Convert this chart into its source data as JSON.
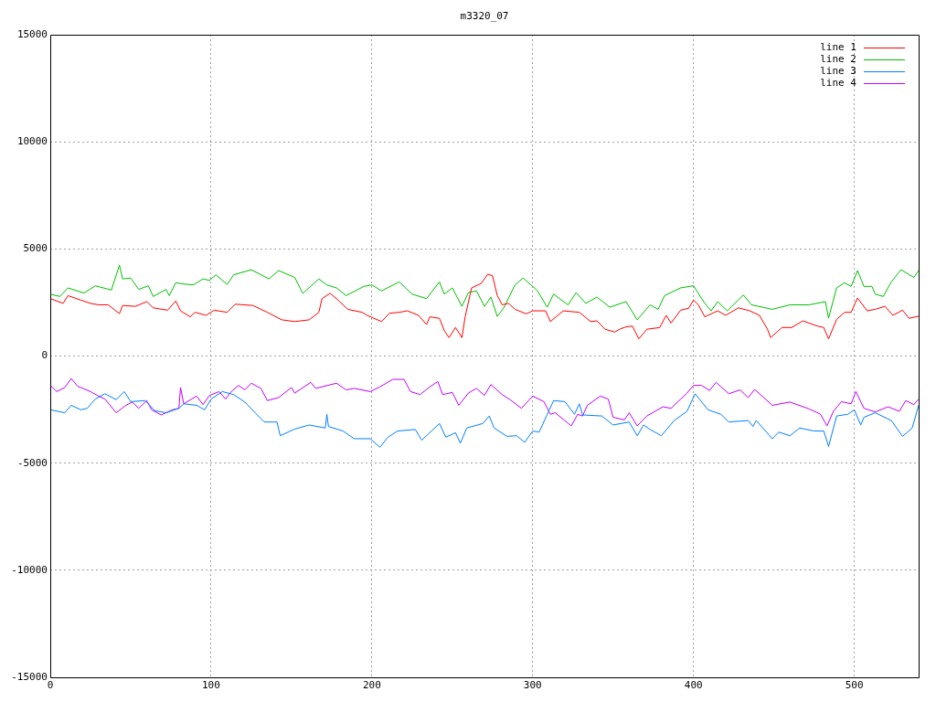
{
  "chart_data": {
    "type": "line",
    "title": "m3320_07",
    "xlim": [
      0,
      540
    ],
    "xticks": [
      0,
      100,
      200,
      300,
      400,
      500
    ],
    "ylim": [
      -15000,
      15000
    ],
    "yticks": [
      -15000,
      -10000,
      -5000,
      0,
      5000,
      10000,
      15000
    ],
    "grid": true,
    "legend": "top right",
    "marker": "none",
    "line_style": "solid",
    "series": [
      {
        "name": "line 1",
        "color": "#ff0000",
        "x": [
          0,
          8,
          11,
          19,
          25,
          30,
          36,
          43,
          45,
          53,
          60,
          64,
          73,
          78,
          81,
          87,
          90,
          97,
          102,
          110,
          115,
          126,
          135,
          144,
          152,
          161,
          167,
          169,
          174,
          179,
          185,
          194,
          197,
          206,
          211,
          217,
          222,
          229,
          234,
          236,
          242,
          245,
          248,
          252,
          256,
          258,
          262,
          268,
          272,
          275,
          278,
          281,
          285,
          289,
          296,
          300,
          308,
          311,
          319,
          329,
          336,
          340,
          345,
          351,
          354,
          358,
          362,
          366,
          371,
          379,
          383,
          386,
          392,
          397,
          400,
          403,
          407,
          415,
          420,
          428,
          435,
          441,
          446,
          448,
          455,
          461,
          468,
          477,
          481,
          484,
          489,
          494,
          498,
          502,
          508,
          513,
          519,
          524,
          530,
          534,
          540
        ],
        "values": [
          2680,
          2460,
          2820,
          2610,
          2460,
          2390,
          2390,
          1980,
          2360,
          2320,
          2540,
          2250,
          2140,
          2570,
          2110,
          1830,
          2040,
          1900,
          2140,
          2040,
          2420,
          2360,
          2040,
          1690,
          1610,
          1690,
          2040,
          2680,
          2930,
          2610,
          2180,
          2040,
          1900,
          1610,
          2000,
          2040,
          2110,
          1900,
          1470,
          1830,
          1760,
          1190,
          860,
          1330,
          860,
          1830,
          3180,
          3390,
          3820,
          3750,
          2820,
          2390,
          2460,
          2180,
          1970,
          2110,
          2110,
          1610,
          2110,
          2040,
          1610,
          1640,
          1250,
          1120,
          1250,
          1360,
          1400,
          800,
          1250,
          1330,
          1900,
          1540,
          2140,
          2230,
          2610,
          2390,
          1830,
          2110,
          1900,
          2250,
          2110,
          1900,
          1250,
          860,
          1330,
          1330,
          1640,
          1400,
          1330,
          800,
          1710,
          2040,
          2040,
          2710,
          2110,
          2180,
          2320,
          1900,
          2140,
          1760,
          1860
        ]
      },
      {
        "name": "line 2",
        "color": "#00c000",
        "x": [
          0,
          6,
          11,
          21,
          28,
          38,
          43,
          45,
          50,
          55,
          61,
          64,
          72,
          74,
          78,
          83,
          89,
          95,
          99,
          103,
          110,
          114,
          125,
          136,
          142,
          152,
          157,
          167,
          172,
          178,
          184,
          195,
          200,
          206,
          217,
          225,
          234,
          242,
          245,
          250,
          256,
          260,
          265,
          270,
          274,
          278,
          282,
          289,
          294,
          300,
          303,
          309,
          313,
          322,
          327,
          333,
          340,
          348,
          358,
          365,
          373,
          378,
          382,
          392,
          400,
          407,
          411,
          415,
          421,
          431,
          436,
          449,
          460,
          472,
          482,
          484,
          489,
          494,
          498,
          502,
          506,
          511,
          513,
          518,
          523,
          529,
          537,
          540
        ],
        "values": [
          2890,
          2780,
          3180,
          2940,
          3280,
          3080,
          4240,
          3600,
          3640,
          3110,
          3280,
          2780,
          3110,
          2820,
          3420,
          3360,
          3320,
          3600,
          3530,
          3790,
          3340,
          3790,
          4030,
          3600,
          3990,
          3670,
          2920,
          3600,
          3320,
          3180,
          2820,
          3250,
          3320,
          3040,
          3460,
          2890,
          2680,
          3460,
          2890,
          3180,
          2320,
          2960,
          3040,
          2320,
          2750,
          1850,
          2250,
          3320,
          3640,
          3250,
          3040,
          2280,
          2890,
          2390,
          2960,
          2460,
          2750,
          2280,
          2540,
          1690,
          2390,
          2180,
          2820,
          3180,
          3280,
          2460,
          2110,
          2540,
          2110,
          2850,
          2390,
          2180,
          2390,
          2390,
          2540,
          1770,
          3180,
          3420,
          3250,
          3990,
          3250,
          3250,
          2890,
          2780,
          3460,
          4030,
          3670,
          3990
        ]
      },
      {
        "name": "line 3",
        "color": "#0080ff",
        "x": [
          0,
          9,
          13,
          19,
          23,
          28,
          34,
          41,
          46,
          50,
          59,
          65,
          72,
          80,
          83,
          91,
          96,
          100,
          107,
          114,
          121,
          133,
          141,
          143,
          152,
          161,
          171,
          172,
          173,
          182,
          189,
          199,
          205,
          210,
          216,
          227,
          231,
          242,
          246,
          252,
          255,
          259,
          269,
          273,
          276,
          284,
          290,
          295,
          300,
          304,
          313,
          320,
          326,
          329,
          331,
          343,
          350,
          360,
          365,
          369,
          373,
          380,
          388,
          396,
          401,
          409,
          417,
          422,
          434,
          437,
          439,
          449,
          453,
          460,
          466,
          475,
          481,
          484,
          489,
          496,
          500,
          504,
          506,
          513,
          523,
          530,
          536,
          540
        ],
        "values": [
          -2510,
          -2650,
          -2300,
          -2510,
          -2440,
          -2010,
          -1760,
          -2040,
          -1660,
          -2130,
          -2080,
          -2550,
          -2650,
          -2440,
          -2230,
          -2300,
          -2510,
          -2010,
          -1660,
          -1800,
          -2150,
          -3080,
          -3080,
          -3720,
          -3410,
          -3220,
          -3360,
          -2720,
          -3290,
          -3500,
          -3860,
          -3860,
          -4260,
          -3790,
          -3500,
          -3430,
          -3930,
          -3150,
          -3790,
          -3580,
          -4070,
          -3360,
          -3150,
          -2800,
          -3360,
          -3750,
          -3720,
          -4030,
          -3500,
          -3550,
          -2080,
          -2130,
          -2720,
          -2230,
          -2750,
          -2800,
          -3220,
          -3080,
          -3720,
          -3220,
          -3430,
          -3720,
          -3010,
          -2580,
          -1760,
          -2510,
          -2720,
          -3080,
          -3010,
          -3290,
          -3010,
          -3860,
          -3550,
          -3720,
          -3360,
          -3500,
          -3500,
          -4220,
          -2800,
          -2720,
          -2510,
          -3220,
          -2860,
          -2650,
          -3010,
          -3750,
          -3360,
          -2300
        ]
      },
      {
        "name": "line 4",
        "color": "#c000ff",
        "x": [
          0,
          4,
          9,
          13,
          17,
          25,
          30,
          34,
          41,
          47,
          51,
          55,
          60,
          63,
          69,
          76,
          80,
          81,
          83,
          91,
          95,
          99,
          105,
          109,
          112,
          117,
          121,
          125,
          131,
          135,
          142,
          150,
          152,
          162,
          165,
          178,
          184,
          189,
          199,
          205,
          213,
          220,
          224,
          230,
          236,
          241,
          244,
          250,
          254,
          260,
          265,
          270,
          274,
          281,
          286,
          293,
          300,
          307,
          311,
          314,
          324,
          328,
          331,
          334,
          342,
          347,
          350,
          357,
          360,
          365,
          371,
          381,
          386,
          396,
          400,
          405,
          410,
          414,
          422,
          429,
          434,
          438,
          449,
          460,
          472,
          479,
          483,
          487,
          492,
          498,
          501,
          506,
          513,
          521,
          528,
          532,
          537,
          540
        ],
        "values": [
          -1370,
          -1660,
          -1470,
          -1050,
          -1410,
          -1660,
          -1870,
          -2010,
          -2650,
          -2300,
          -2150,
          -2440,
          -2080,
          -2510,
          -2750,
          -2510,
          -2440,
          -1470,
          -2230,
          -1870,
          -2270,
          -1840,
          -1660,
          -2010,
          -1700,
          -1370,
          -1580,
          -1270,
          -1510,
          -2080,
          -1940,
          -1470,
          -1730,
          -1230,
          -1510,
          -1270,
          -1580,
          -1510,
          -1660,
          -1440,
          -1090,
          -1090,
          -1660,
          -1800,
          -1440,
          -1190,
          -1800,
          -1700,
          -2300,
          -1730,
          -1510,
          -1840,
          -1330,
          -1800,
          -2040,
          -2440,
          -1870,
          -2130,
          -2720,
          -2650,
          -3260,
          -2720,
          -2800,
          -2300,
          -1870,
          -2010,
          -2860,
          -2980,
          -2650,
          -3260,
          -2800,
          -2370,
          -2440,
          -1730,
          -1370,
          -1370,
          -1610,
          -1230,
          -1760,
          -1580,
          -1940,
          -1560,
          -2300,
          -2150,
          -2470,
          -2720,
          -3260,
          -2580,
          -2130,
          -2230,
          -1660,
          -2440,
          -2610,
          -2370,
          -2580,
          -2080,
          -2270,
          -2010
        ]
      }
    ]
  }
}
